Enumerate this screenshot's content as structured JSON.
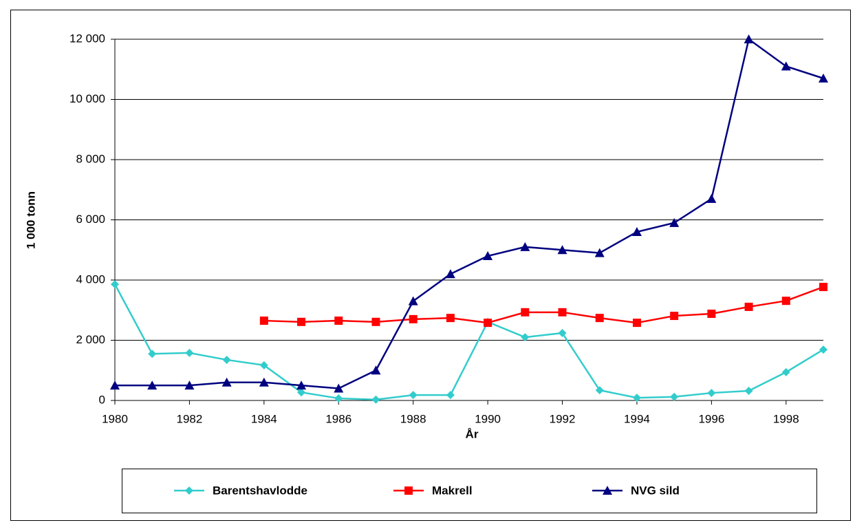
{
  "chart_data": {
    "type": "line",
    "x_label": "År",
    "y_label": "1 000 tonn",
    "x": [
      1980,
      1981,
      1982,
      1983,
      1984,
      1985,
      1986,
      1987,
      1988,
      1989,
      1990,
      1991,
      1992,
      1993,
      1994,
      1995,
      1996,
      1997,
      1998,
      1999
    ],
    "xlim": [
      1980,
      1999
    ],
    "xticks": [
      1980,
      1982,
      1984,
      1986,
      1988,
      1990,
      1992,
      1994,
      1996,
      1998
    ],
    "ylim": [
      0,
      12000
    ],
    "yticks": [
      0,
      {
        "value": 2000,
        "label": "2 000"
      },
      {
        "value": 4000,
        "label": "4 000"
      },
      {
        "value": 6000,
        "label": "6 000"
      },
      {
        "value": 8000,
        "label": "8 000"
      },
      {
        "value": 10000,
        "label": "10 000"
      },
      {
        "value": 12000,
        "label": "12 000"
      }
    ],
    "grid": true,
    "legend": "bottom",
    "series": [
      {
        "name": "Barentshavlodde",
        "color": "#33cccc",
        "marker": "diamond",
        "values": [
          3860,
          1550,
          1580,
          1350,
          1170,
          270,
          70,
          30,
          180,
          180,
          2610,
          2100,
          2240,
          340,
          90,
          120,
          250,
          320,
          940,
          1690
        ]
      },
      {
        "name": "Makrell",
        "color": "#ff0000",
        "marker": "square",
        "values": [
          null,
          null,
          null,
          null,
          2650,
          2610,
          2650,
          2610,
          2700,
          2740,
          2580,
          2930,
          2930,
          2740,
          2580,
          2810,
          2880,
          3110,
          3310,
          3770
        ]
      },
      {
        "name": "NVG sild",
        "color": "#000080",
        "marker": "triangle",
        "values": [
          500,
          500,
          500,
          600,
          600,
          500,
          400,
          1000,
          3300,
          4200,
          4800,
          5100,
          5000,
          4900,
          5600,
          5900,
          6700,
          12000,
          11100,
          10700
        ]
      }
    ]
  }
}
